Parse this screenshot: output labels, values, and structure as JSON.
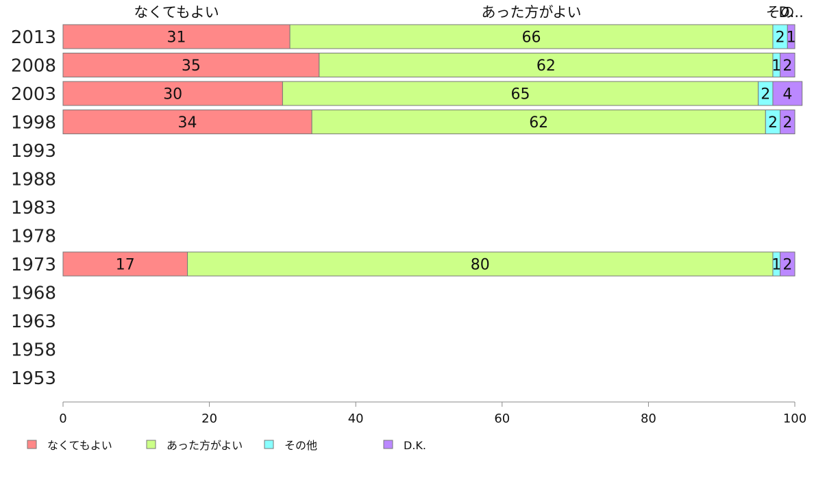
{
  "chart_data": {
    "type": "bar",
    "orientation": "horizontal",
    "stacked": true,
    "categories": [
      "2013",
      "2008",
      "2003",
      "1998",
      "1993",
      "1988",
      "1983",
      "1978",
      "1973",
      "1968",
      "1963",
      "1958",
      "1953"
    ],
    "series": [
      {
        "name": "なくてもよい",
        "color": "#ff8888",
        "values": [
          31,
          35,
          30,
          34,
          null,
          null,
          null,
          null,
          17,
          null,
          null,
          null,
          null
        ]
      },
      {
        "name": "あった方がよい",
        "color": "#ccff88",
        "values": [
          66,
          62,
          65,
          62,
          null,
          null,
          null,
          null,
          80,
          null,
          null,
          null,
          null
        ]
      },
      {
        "name": "その他",
        "color": "#88ffff",
        "values": [
          2,
          1,
          2,
          2,
          null,
          null,
          null,
          null,
          1,
          null,
          null,
          null,
          null
        ]
      },
      {
        "name": "D.K.",
        "color": "#bb88ff",
        "values": [
          1,
          2,
          4,
          2,
          null,
          null,
          null,
          null,
          2,
          null,
          null,
          null,
          null
        ]
      }
    ],
    "top_labels": [
      "なくてもよい",
      "あった方がよい",
      "その",
      "D..."
    ],
    "xlim": [
      0,
      100
    ],
    "xticks": [
      0,
      20,
      40,
      60,
      80,
      100
    ],
    "grid": false,
    "legend_position": "bottom-left"
  }
}
